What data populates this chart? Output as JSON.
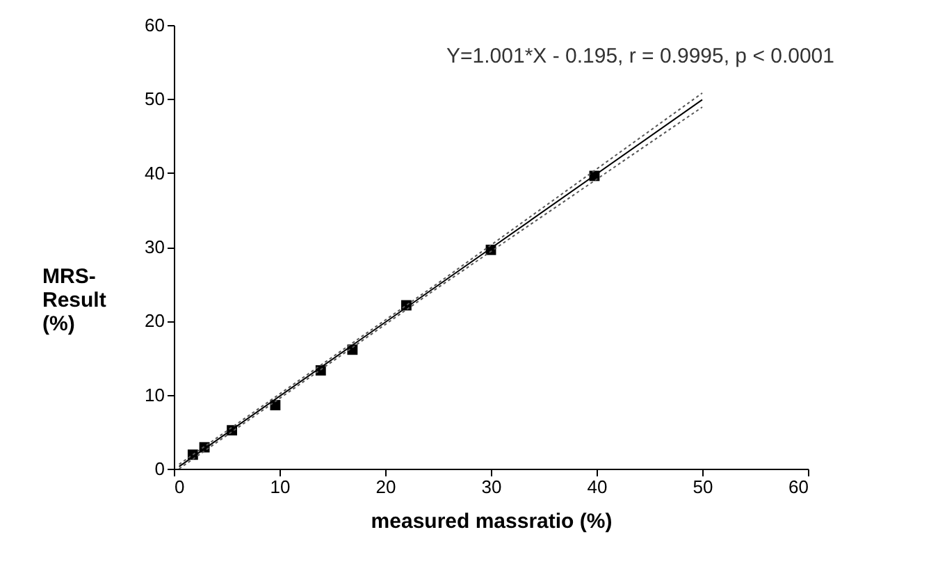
{
  "chart_data": {
    "type": "scatter",
    "xlabel": "measured massratio (%)",
    "ylabel": "MRS-Result (%)",
    "annotations": [
      "Y=1.001*X - 0.195, r = 0.9995, p < 0.0001"
    ],
    "xlim": [
      0,
      60
    ],
    "xticks": [
      0,
      10,
      20,
      30,
      40,
      50,
      60
    ],
    "ylim": [
      0,
      60
    ],
    "yticks": [
      0,
      10,
      20,
      30,
      40,
      50,
      60
    ],
    "grid": false,
    "series": [
      {
        "marker": "square",
        "color": "#000000",
        "x": [
          1.8,
          2.9,
          5.5,
          9.6,
          13.9,
          16.9,
          22,
          30,
          39.8
        ],
        "values": [
          1.9,
          2.9,
          5.2,
          8.6,
          13.3,
          16.1,
          22.1,
          29.6,
          39.6
        ]
      },
      {
        "type": "line",
        "marker": "none",
        "color": "#000000",
        "line_style": "solid",
        "x": [
          0.5,
          25,
          50
        ],
        "values": [
          0.3,
          24.8,
          49.9
        ]
      },
      {
        "type": "line",
        "marker": "none",
        "color": "#555555",
        "line_style": "dotted",
        "x": [
          0.5,
          25,
          50
        ],
        "values": [
          0.6,
          25.1,
          50.8
        ]
      },
      {
        "type": "line",
        "marker": "none",
        "color": "#555555",
        "line_style": "dotted",
        "x": [
          0.5,
          25,
          50
        ],
        "values": [
          0,
          24.5,
          48.9
        ]
      }
    ]
  }
}
